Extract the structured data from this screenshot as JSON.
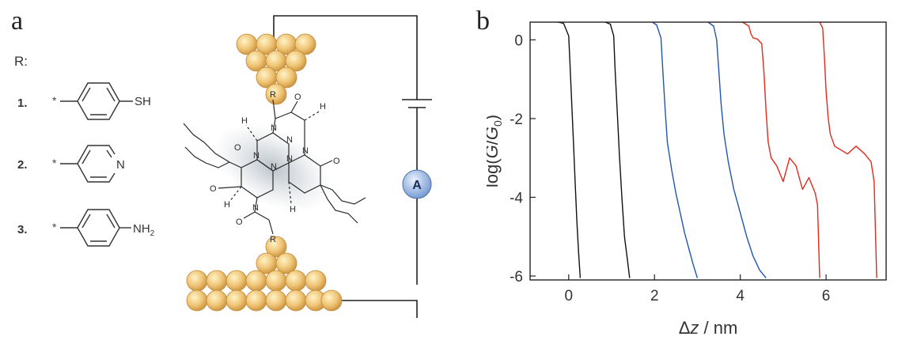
{
  "panel_a": {
    "letter": "a",
    "r_heading": "R:",
    "substituents": [
      {
        "number": "1.",
        "group": "SH"
      },
      {
        "number": "2.",
        "group": "N"
      },
      {
        "number": "3.",
        "group": "NH2"
      }
    ],
    "ammeter_label": "A",
    "molecule_atoms": {
      "nitrogen": "N",
      "oxygen": "O",
      "hydrogen": "H",
      "r_group": "R",
      "attach_marker": "*"
    }
  },
  "panel_b": {
    "letter": "b"
  },
  "chart_data": {
    "type": "line",
    "xlabel": "Δz / nm",
    "ylabel": "log(G/G0)",
    "xlim": [
      -0.9,
      7.4
    ],
    "ylim": [
      -6.1,
      0.45
    ],
    "x_ticks": [
      0,
      2,
      4,
      6
    ],
    "y_ticks": [
      0,
      -2,
      -4,
      -6
    ],
    "grid": false,
    "series": [
      {
        "color": "#111111",
        "points": [
          [
            -0.25,
            0.45
          ],
          [
            -0.12,
            0.42
          ],
          [
            0.0,
            0.1
          ],
          [
            0.03,
            -0.6
          ],
          [
            0.07,
            -1.6
          ],
          [
            0.11,
            -2.6
          ],
          [
            0.15,
            -3.6
          ],
          [
            0.19,
            -4.6
          ],
          [
            0.23,
            -5.4
          ],
          [
            0.27,
            -6.05
          ]
        ]
      },
      {
        "color": "#111111",
        "points": [
          [
            0.85,
            0.45
          ],
          [
            0.97,
            0.4
          ],
          [
            1.05,
            0.1
          ],
          [
            1.08,
            -0.7
          ],
          [
            1.13,
            -1.8
          ],
          [
            1.18,
            -2.9
          ],
          [
            1.24,
            -4.0
          ],
          [
            1.3,
            -5.0
          ],
          [
            1.37,
            -5.6
          ],
          [
            1.42,
            -6.05
          ]
        ]
      },
      {
        "color": "#2255b0",
        "points": [
          [
            1.95,
            0.45
          ],
          [
            2.05,
            0.38
          ],
          [
            2.15,
            0.05
          ],
          [
            2.2,
            -0.9
          ],
          [
            2.25,
            -1.8
          ],
          [
            2.3,
            -2.6
          ],
          [
            2.4,
            -3.3
          ],
          [
            2.5,
            -3.9
          ],
          [
            2.6,
            -4.4
          ],
          [
            2.7,
            -4.9
          ],
          [
            2.8,
            -5.3
          ],
          [
            2.9,
            -5.7
          ],
          [
            3.0,
            -6.05
          ]
        ]
      },
      {
        "color": "#2255b0",
        "points": [
          [
            3.25,
            0.45
          ],
          [
            3.38,
            0.35
          ],
          [
            3.45,
            0.0
          ],
          [
            3.5,
            -0.8
          ],
          [
            3.55,
            -1.6
          ],
          [
            3.62,
            -2.4
          ],
          [
            3.72,
            -3.1
          ],
          [
            3.85,
            -3.8
          ],
          [
            4.0,
            -4.4
          ],
          [
            4.15,
            -5.0
          ],
          [
            4.3,
            -5.5
          ],
          [
            4.45,
            -5.85
          ],
          [
            4.6,
            -6.05
          ]
        ]
      },
      {
        "color": "#e02a1a",
        "points": [
          [
            4.05,
            0.45
          ],
          [
            4.2,
            0.35
          ],
          [
            4.25,
            0.15
          ],
          [
            4.3,
            0.05
          ],
          [
            4.4,
            0.02
          ],
          [
            4.5,
            -0.1
          ],
          [
            4.55,
            -0.8
          ],
          [
            4.6,
            -1.8
          ],
          [
            4.65,
            -2.6
          ],
          [
            4.72,
            -3.0
          ],
          [
            4.85,
            -3.2
          ],
          [
            5.0,
            -3.6
          ],
          [
            5.15,
            -3.0
          ],
          [
            5.3,
            -3.2
          ],
          [
            5.45,
            -3.8
          ],
          [
            5.6,
            -3.5
          ],
          [
            5.75,
            -3.9
          ],
          [
            5.8,
            -4.2
          ],
          [
            5.85,
            -6.05
          ]
        ]
      },
      {
        "color": "#e02a1a",
        "points": [
          [
            5.85,
            0.45
          ],
          [
            5.92,
            0.3
          ],
          [
            5.96,
            -0.4
          ],
          [
            6.0,
            -1.3
          ],
          [
            6.05,
            -2.0
          ],
          [
            6.1,
            -2.4
          ],
          [
            6.2,
            -2.7
          ],
          [
            6.35,
            -2.8
          ],
          [
            6.5,
            -2.9
          ],
          [
            6.7,
            -2.7
          ],
          [
            6.9,
            -2.9
          ],
          [
            7.05,
            -3.1
          ],
          [
            7.12,
            -3.6
          ],
          [
            7.18,
            -6.05
          ]
        ]
      }
    ]
  }
}
